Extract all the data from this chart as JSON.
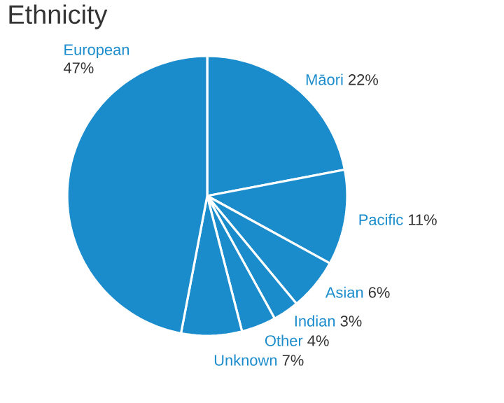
{
  "chart_data": {
    "type": "pie",
    "title": "Ethnicity",
    "categories": [
      "Māori",
      "Pacific",
      "Asian",
      "Indian",
      "Other",
      "Unknown",
      "European"
    ],
    "values": [
      22,
      11,
      6,
      3,
      4,
      7,
      47
    ],
    "value_labels": [
      "22%",
      "11%",
      "6%",
      "3%",
      "4%",
      "7%",
      "47%"
    ],
    "colors": [
      "#1a8ccc",
      "#1a8ccc",
      "#1a8ccc",
      "#1a8ccc",
      "#1a8ccc",
      "#1a8ccc",
      "#1a8ccc"
    ]
  }
}
